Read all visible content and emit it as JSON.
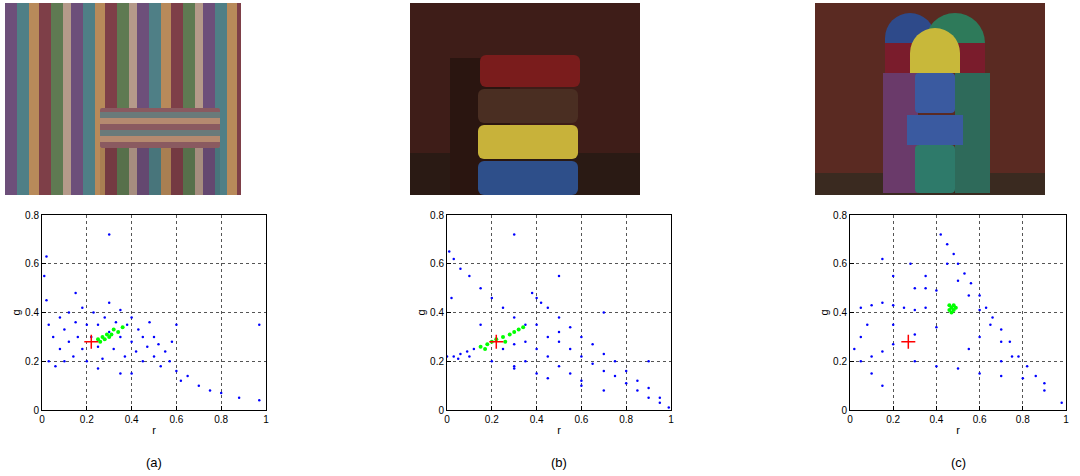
{
  "chart_data": [
    {
      "type": "scatter",
      "title": "(a)",
      "xlabel": "r",
      "ylabel": "g",
      "xlim": [
        0,
        1
      ],
      "xticks": [
        0,
        0.2,
        0.4,
        0.6,
        0.8,
        1
      ],
      "ylim": [
        0,
        0.8
      ],
      "yticks": [
        0,
        0.2,
        0.4,
        0.6,
        0.8
      ],
      "grid": true,
      "series": [
        {
          "color": "#0000ff",
          "marker": "dot",
          "x": [
            0.01,
            0.02,
            0.03,
            0.03,
            0.05,
            0.06,
            0.08,
            0.08,
            0.1,
            0.1,
            0.12,
            0.12,
            0.14,
            0.15,
            0.16,
            0.18,
            0.18,
            0.2,
            0.2,
            0.22,
            0.23,
            0.25,
            0.25,
            0.27,
            0.28,
            0.3,
            0.3,
            0.32,
            0.33,
            0.35,
            0.35,
            0.37,
            0.38,
            0.4,
            0.4,
            0.42,
            0.43,
            0.45,
            0.45,
            0.47,
            0.48,
            0.5,
            0.5,
            0.52,
            0.53,
            0.55,
            0.57,
            0.58,
            0.6,
            0.62,
            0.65,
            0.7,
            0.75,
            0.8,
            0.88,
            0.97,
            0.02,
            0.3,
            0.15,
            0.4,
            0.35,
            0.25,
            0.97,
            0.6
          ],
          "y": [
            0.55,
            0.45,
            0.35,
            0.2,
            0.3,
            0.18,
            0.38,
            0.25,
            0.33,
            0.2,
            0.4,
            0.28,
            0.22,
            0.36,
            0.3,
            0.42,
            0.25,
            0.35,
            0.2,
            0.3,
            0.4,
            0.26,
            0.35,
            0.21,
            0.38,
            0.32,
            0.44,
            0.25,
            0.36,
            0.3,
            0.41,
            0.22,
            0.35,
            0.28,
            0.38,
            0.24,
            0.33,
            0.3,
            0.2,
            0.26,
            0.36,
            0.22,
            0.3,
            0.27,
            0.18,
            0.24,
            0.2,
            0.28,
            0.16,
            0.12,
            0.14,
            0.1,
            0.08,
            0.07,
            0.05,
            0.04,
            0.63,
            0.72,
            0.48,
            0.15,
            0.15,
            0.17,
            0.35,
            0.35
          ]
        },
        {
          "color": "#00ff00",
          "marker": "dot",
          "x": [
            0.25,
            0.27,
            0.29,
            0.3,
            0.32,
            0.34,
            0.36,
            0.26,
            0.28,
            0.31
          ],
          "y": [
            0.29,
            0.3,
            0.31,
            0.3,
            0.33,
            0.32,
            0.34,
            0.28,
            0.29,
            0.31
          ]
        },
        {
          "color": "#ff0000",
          "marker": "plus",
          "x": [
            0.22
          ],
          "y": [
            0.28
          ]
        }
      ]
    },
    {
      "type": "scatter",
      "title": "(b)",
      "xlabel": "r",
      "ylabel": "g",
      "xlim": [
        0,
        1
      ],
      "xticks": [
        0,
        0.2,
        0.4,
        0.6,
        0.8,
        1
      ],
      "ylim": [
        0,
        0.8
      ],
      "yticks": [
        0,
        0.2,
        0.4,
        0.6,
        0.8
      ],
      "grid": true,
      "series": [
        {
          "color": "#0000ff",
          "marker": "dot",
          "x": [
            0,
            0.03,
            0.06,
            0.09,
            0.12,
            0.05,
            0.1,
            0.01,
            0.03,
            0.06,
            0.1,
            0.15,
            0.2,
            0.25,
            0.3,
            0.35,
            0.55,
            0.6,
            0.65,
            0.7,
            0.75,
            0.8,
            0.85,
            0.9,
            0.95,
            0.99,
            0.38,
            0.4,
            0.42,
            0.45,
            0.5,
            0.55,
            0.6,
            0.65,
            0.7,
            0.75,
            0.8,
            0.85,
            0.9,
            0.95,
            0.4,
            0.45,
            0.5,
            0.4,
            0.45,
            0.5,
            0.35,
            0.3,
            0.4,
            0.55,
            0.6,
            0.25,
            0.3,
            0.35,
            0.5,
            0.2,
            0.3,
            0.45,
            0.6,
            0.7,
            0.3,
            0.5,
            0.7,
            0.15,
            0.02,
            0.9
          ],
          "y": [
            0.22,
            0.22,
            0.23,
            0.24,
            0.25,
            0.21,
            0.22,
            0.65,
            0.62,
            0.58,
            0.55,
            0.5,
            0.46,
            0.42,
            0.38,
            0.35,
            0.25,
            0.22,
            0.19,
            0.16,
            0.14,
            0.11,
            0.08,
            0.05,
            0.03,
            0.01,
            0.48,
            0.46,
            0.44,
            0.42,
            0.38,
            0.34,
            0.3,
            0.27,
            0.23,
            0.2,
            0.16,
            0.12,
            0.09,
            0.05,
            0.35,
            0.3,
            0.28,
            0.25,
            0.22,
            0.18,
            0.2,
            0.18,
            0.15,
            0.15,
            0.12,
            0.25,
            0.27,
            0.28,
            0.32,
            0.2,
            0.17,
            0.13,
            0.1,
            0.08,
            0.72,
            0.55,
            0.4,
            0.35,
            0.46,
            0.2
          ]
        },
        {
          "color": "#00ff00",
          "marker": "dot",
          "x": [
            0.15,
            0.18,
            0.2,
            0.22,
            0.25,
            0.28,
            0.3,
            0.32,
            0.34,
            0.26,
            0.17
          ],
          "y": [
            0.26,
            0.27,
            0.28,
            0.29,
            0.3,
            0.31,
            0.32,
            0.33,
            0.34,
            0.28,
            0.25
          ]
        },
        {
          "color": "#ff0000",
          "marker": "plus",
          "x": [
            0.22
          ],
          "y": [
            0.28
          ]
        }
      ]
    },
    {
      "type": "scatter",
      "title": "(c)",
      "xlabel": "r",
      "ylabel": "g",
      "xlim": [
        0,
        1
      ],
      "xticks": [
        0,
        0.2,
        0.4,
        0.6,
        0.8,
        1
      ],
      "ylim": [
        0,
        0.8
      ],
      "yticks": [
        0,
        0.2,
        0.4,
        0.6,
        0.8
      ],
      "grid": true,
      "series": [
        {
          "color": "#0000ff",
          "marker": "dot",
          "x": [
            0.42,
            0.45,
            0.48,
            0.5,
            0.53,
            0.56,
            0.6,
            0.63,
            0.66,
            0.7,
            0.74,
            0.78,
            0.82,
            0.86,
            0.9,
            0.45,
            0.5,
            0.55,
            0.6,
            0.65,
            0.7,
            0.75,
            0.05,
            0.1,
            0.15,
            0.2,
            0.25,
            0.3,
            0.35,
            0.05,
            0.1,
            0.15,
            0.2,
            0.3,
            0.4,
            0.3,
            0.4,
            0.5,
            0.6,
            0.7,
            0.8,
            0.02,
            0.05,
            0.08,
            0.1,
            0.15,
            0.2,
            0.3,
            0.35,
            0.28,
            0.2,
            0.6,
            0.7,
            0.55,
            0.15,
            0.98,
            0.9,
            0.35,
            0.4
          ],
          "y": [
            0.72,
            0.68,
            0.64,
            0.6,
            0.56,
            0.52,
            0.47,
            0.42,
            0.38,
            0.33,
            0.28,
            0.22,
            0.18,
            0.14,
            0.11,
            0.6,
            0.53,
            0.47,
            0.41,
            0.35,
            0.28,
            0.22,
            0.42,
            0.43,
            0.44,
            0.43,
            0.42,
            0.41,
            0.42,
            0.2,
            0.22,
            0.24,
            0.27,
            0.31,
            0.34,
            0.2,
            0.18,
            0.17,
            0.15,
            0.14,
            0.13,
            0.25,
            0.3,
            0.35,
            0.15,
            0.1,
            0.35,
            0.5,
            0.55,
            0.6,
            0.55,
            0.3,
            0.2,
            0.25,
            0.62,
            0.03,
            0.08,
            0.5,
            0.49
          ]
        },
        {
          "color": "#00ff00",
          "marker": "dot",
          "x": [
            0.46,
            0.47,
            0.48,
            0.46,
            0.48,
            0.47,
            0.49
          ],
          "y": [
            0.41,
            0.42,
            0.43,
            0.43,
            0.41,
            0.4,
            0.42
          ]
        },
        {
          "color": "#ff0000",
          "marker": "plus",
          "x": [
            0.27
          ],
          "y": [
            0.28
          ]
        }
      ]
    }
  ]
}
